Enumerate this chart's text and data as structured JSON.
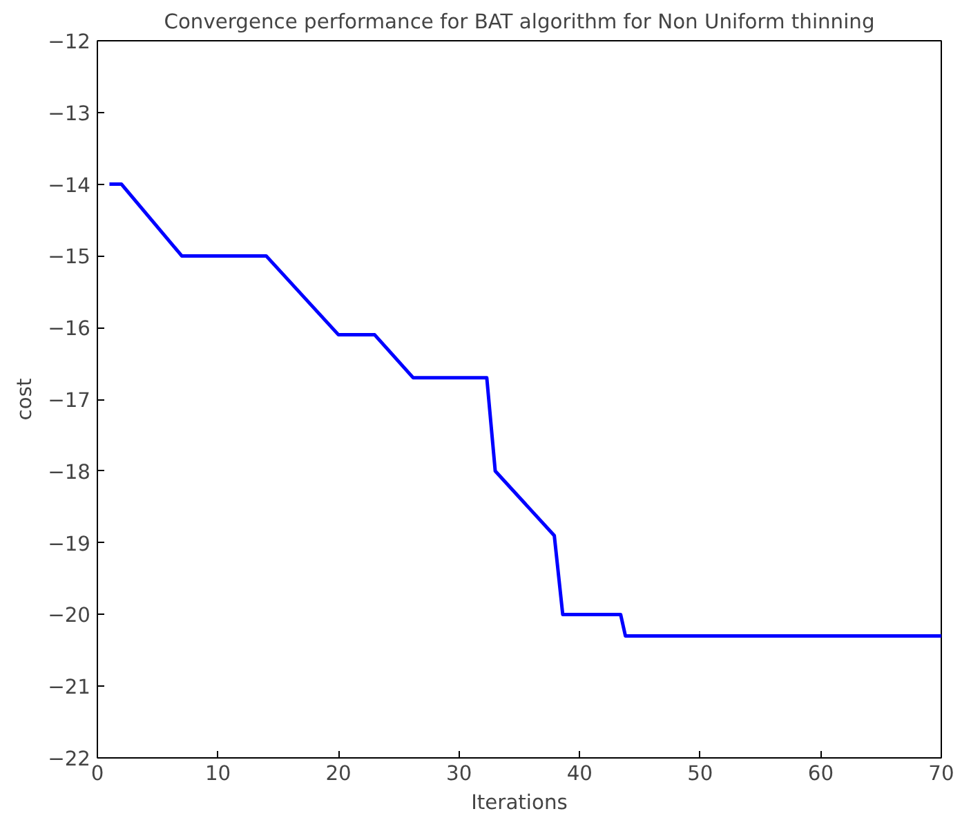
{
  "chart_data": {
    "type": "line",
    "title": "Convergence performance for BAT algorithm for Non Uniform thinning",
    "xlabel": "Iterations",
    "ylabel": "cost",
    "x": [
      1,
      2,
      7,
      14,
      20,
      23,
      26.2,
      32.3,
      33,
      37.9,
      38.6,
      43.4,
      43.8,
      70
    ],
    "series": [
      {
        "color": "#0000ff",
        "values": [
          -14,
          -14,
          -15,
          -15,
          -16.1,
          -16.1,
          -16.7,
          -16.7,
          -18.0,
          -18.9,
          -20.0,
          -20.0,
          -20.3,
          -20.3
        ]
      }
    ],
    "xlim": [
      0,
      70
    ],
    "ylim": [
      -22,
      -12
    ],
    "xticks": [
      0,
      10,
      20,
      30,
      40,
      50,
      60,
      70
    ],
    "yticks": [
      -22,
      -21,
      -20,
      -19,
      -18,
      -17,
      -16,
      -15,
      -14,
      -13,
      -12
    ],
    "grid": false,
    "marker": "none",
    "line_style": "solid"
  }
}
